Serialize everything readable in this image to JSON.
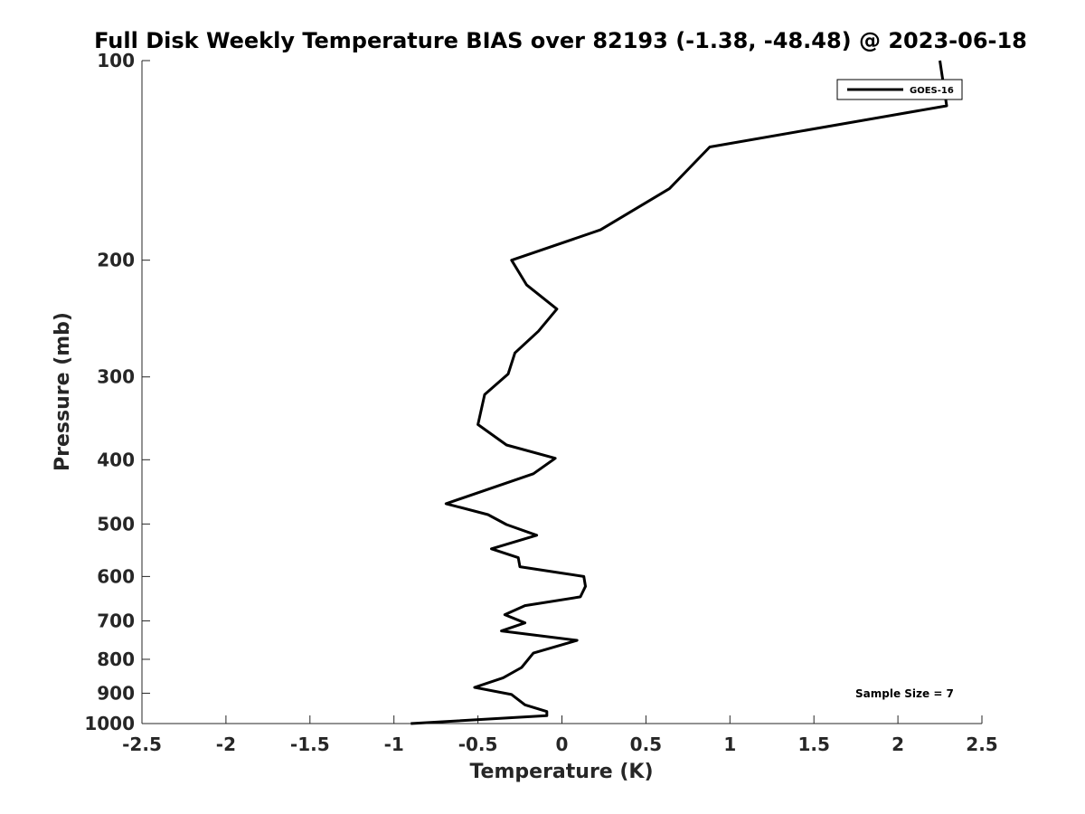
{
  "chart_data": {
    "type": "line",
    "title": "Full Disk Weekly Temperature BIAS over 82193 (-1.38, -48.48) @ 2023-06-18",
    "xlabel": "Temperature (K)",
    "ylabel": "Pressure (mb)",
    "xlim": [
      -2.5,
      2.5
    ],
    "ylim": [
      1000,
      100
    ],
    "y_scale": "log",
    "y_reversed": true,
    "x_ticks": [
      "-2.5",
      "-2",
      "-1.5",
      "-1",
      "-0.5",
      "0",
      "0.5",
      "1",
      "1.5",
      "2",
      "2.5"
    ],
    "x_tick_values": [
      -2.5,
      -2,
      -1.5,
      -1,
      -0.5,
      0,
      0.5,
      1,
      1.5,
      2,
      2.5
    ],
    "y_ticks": [
      "100",
      "200",
      "300",
      "400",
      "500",
      "600",
      "700",
      "800",
      "900",
      "1000"
    ],
    "y_tick_values": [
      100,
      200,
      300,
      400,
      500,
      600,
      700,
      800,
      900,
      1000
    ],
    "grid": false,
    "legend_position": "top-right",
    "series": [
      {
        "name": "GOES-16",
        "color": "#000000",
        "points": [
          [
            2.25,
            100
          ],
          [
            2.29,
            117
          ],
          [
            0.88,
            135
          ],
          [
            0.64,
            156
          ],
          [
            0.23,
            180
          ],
          [
            -0.3,
            200
          ],
          [
            -0.21,
            218
          ],
          [
            -0.03,
            237
          ],
          [
            -0.14,
            256
          ],
          [
            -0.28,
            276
          ],
          [
            -0.32,
            297
          ],
          [
            -0.46,
            319
          ],
          [
            -0.5,
            354
          ],
          [
            -0.33,
            380
          ],
          [
            -0.04,
            398
          ],
          [
            -0.17,
            420
          ],
          [
            -0.69,
            466
          ],
          [
            -0.44,
            484
          ],
          [
            -0.33,
            501
          ],
          [
            -0.15,
            520
          ],
          [
            -0.42,
            545
          ],
          [
            -0.26,
            562
          ],
          [
            -0.25,
            580
          ],
          [
            0.13,
            600
          ],
          [
            0.14,
            621
          ],
          [
            0.11,
            644
          ],
          [
            -0.22,
            664
          ],
          [
            -0.34,
            685
          ],
          [
            -0.22,
            705
          ],
          [
            -0.36,
            725
          ],
          [
            0.09,
            749
          ],
          [
            -0.17,
            783
          ],
          [
            -0.24,
            823
          ],
          [
            -0.35,
            853
          ],
          [
            -0.52,
            882
          ],
          [
            -0.3,
            904
          ],
          [
            -0.22,
            937
          ],
          [
            -0.09,
            959
          ],
          [
            -0.09,
            973
          ],
          [
            -0.9,
            1000
          ]
        ]
      }
    ],
    "annotation": "Sample Size = 7"
  }
}
